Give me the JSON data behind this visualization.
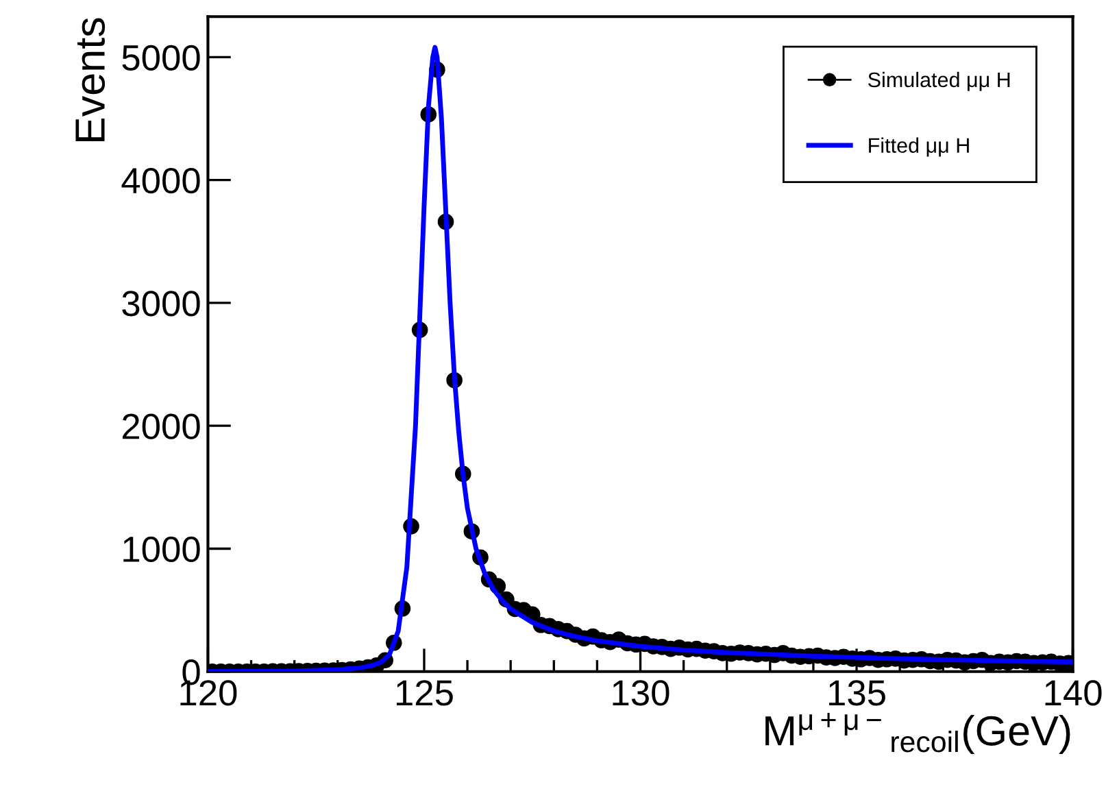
{
  "chart_data": {
    "type": "scatter",
    "xlabel": "M$^{μ+μ−}$$_{recoil}$(GeV)",
    "ylabel": "Events",
    "xlim": [
      120,
      140
    ],
    "ylim": [
      0,
      5330
    ],
    "xticks": [
      120,
      125,
      130,
      135,
      140
    ],
    "yticks": [
      0,
      1000,
      2000,
      3000,
      4000,
      5000
    ],
    "grid": false,
    "legend": "top right",
    "series": [
      {
        "name": "Simulated μμ H",
        "marker": "circle",
        "color": "#000000",
        "x": [
          120.1,
          120.3,
          120.5,
          120.7,
          120.9,
          121.1,
          121.3,
          121.5,
          121.7,
          121.9,
          122.1,
          122.3,
          122.5,
          122.7,
          122.9,
          123.1,
          123.3,
          123.5,
          123.7,
          123.9,
          124.1,
          124.3,
          124.5,
          124.7,
          124.9,
          125.1,
          125.3,
          125.5,
          125.7,
          125.9,
          126.1,
          126.3,
          126.5,
          126.7,
          126.9,
          127.1,
          127.3,
          127.5,
          127.7,
          127.9,
          128.1,
          128.3,
          128.5,
          128.7,
          128.9,
          129.1,
          129.3,
          129.5,
          129.7,
          129.9,
          130.1,
          130.3,
          130.5,
          130.7,
          130.9,
          131.1,
          131.3,
          131.5,
          131.7,
          131.9,
          132.1,
          132.3,
          132.5,
          132.7,
          132.9,
          133.1,
          133.3,
          133.5,
          133.7,
          133.9,
          134.1,
          134.3,
          134.5,
          134.7,
          134.9,
          135.1,
          135.3,
          135.5,
          135.7,
          135.9,
          136.1,
          136.3,
          136.5,
          136.7,
          136.9,
          137.1,
          137.3,
          137.5,
          137.7,
          137.9,
          138.1,
          138.3,
          138.5,
          138.7,
          138.9,
          139.1,
          139.3,
          139.5,
          139.7,
          139.9
        ],
        "values": [
          0,
          0,
          0,
          0,
          0,
          0,
          0,
          2,
          2,
          3,
          4,
          5,
          6,
          8,
          10,
          12,
          18,
          25,
          35,
          50,
          92,
          234,
          513,
          1182,
          2780,
          4534,
          4898,
          3660,
          2371,
          1609,
          1141,
          929,
          750,
          695,
          587,
          509,
          500,
          465,
          379,
          370,
          345,
          330,
          300,
          270,
          285,
          255,
          240,
          260,
          230,
          220,
          225,
          205,
          200,
          185,
          195,
          180,
          185,
          170,
          165,
          150,
          145,
          155,
          150,
          140,
          145,
          135,
          150,
          130,
          120,
          125,
          130,
          115,
          110,
          120,
          105,
          100,
          110,
          95,
          100,
          105,
          90,
          95,
          100,
          85,
          80,
          95,
          90,
          75,
          85,
          95,
          70,
          80,
          75,
          85,
          80,
          70,
          75,
          80,
          65,
          70
        ]
      },
      {
        "name": "Fitted μμ H",
        "type": "line",
        "marker": "none",
        "line_style": "solid",
        "color": "#0000ff",
        "x": [
          120,
          121,
          122,
          123,
          123.5,
          123.8,
          124,
          124.2,
          124.4,
          124.6,
          124.8,
          125.0,
          125.1,
          125.2,
          125.25,
          125.3,
          125.4,
          125.5,
          125.6,
          125.7,
          125.8,
          125.9,
          126.0,
          126.2,
          126.4,
          126.6,
          126.8,
          127,
          127.5,
          128,
          128.5,
          129,
          130,
          131,
          132,
          133,
          134,
          135,
          136,
          137,
          138,
          139,
          140
        ],
        "values": [
          0,
          2,
          5,
          15,
          30,
          50,
          75,
          140,
          330,
          850,
          2000,
          3800,
          4600,
          5000,
          5080,
          5000,
          4500,
          3750,
          3000,
          2400,
          1950,
          1600,
          1330,
          1000,
          800,
          670,
          580,
          510,
          400,
          330,
          285,
          250,
          205,
          175,
          155,
          140,
          125,
          115,
          105,
          97,
          90,
          84,
          78
        ]
      }
    ]
  }
}
